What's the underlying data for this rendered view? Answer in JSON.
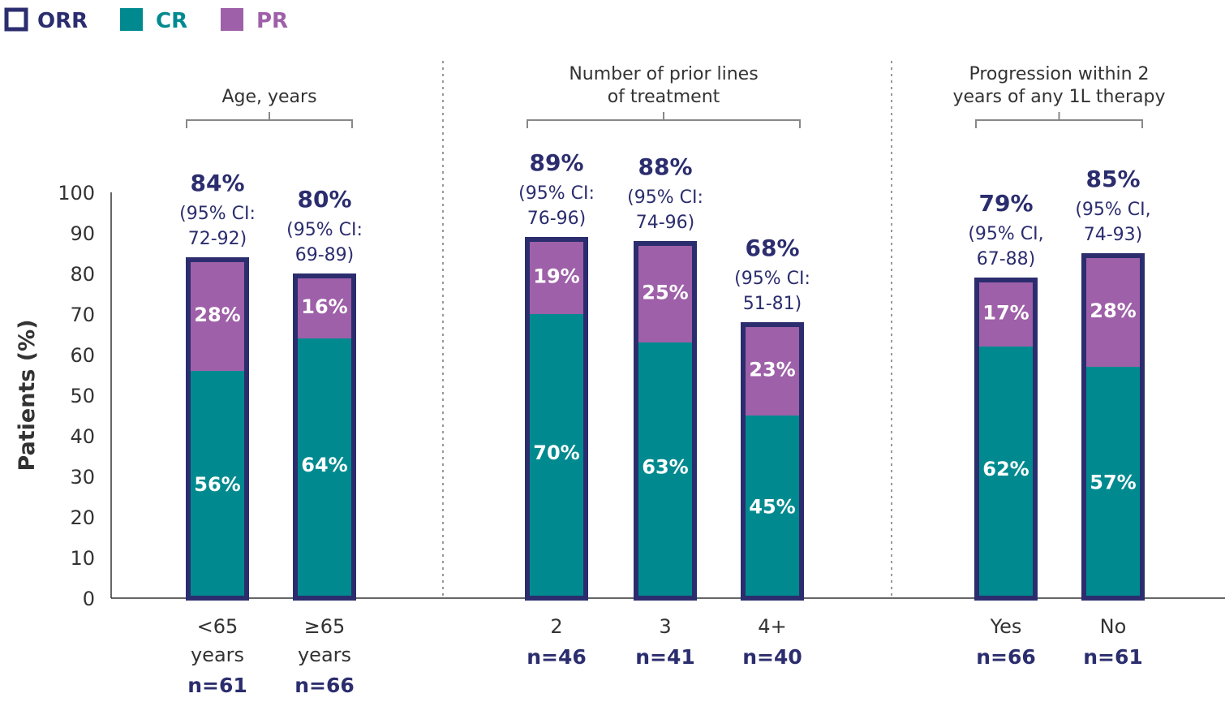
{
  "colors": {
    "orr": "#2b2d6e",
    "cr": "#008a8f",
    "pr": "#9e60a8",
    "axis": "#333333",
    "bracket": "#888888"
  },
  "legend": [
    {
      "key": "orr",
      "label": "ORR",
      "style": "outline"
    },
    {
      "key": "cr",
      "label": "CR",
      "style": "fill"
    },
    {
      "key": "pr",
      "label": "PR",
      "style": "fill"
    }
  ],
  "chart_data": {
    "type": "bar",
    "stacked": true,
    "ylabel": "Patients (%)",
    "ylim": [
      0,
      100
    ],
    "yticks": [
      0,
      10,
      20,
      30,
      40,
      50,
      60,
      70,
      80,
      90,
      100
    ],
    "groups": [
      {
        "title_lines": [
          "Age, years"
        ],
        "bars": [
          {
            "category_lines": [
              "<65",
              "years"
            ],
            "n": "n=61",
            "cr": 56,
            "pr": 28,
            "orr": 84,
            "cr_label": "56%",
            "pr_label": "28%",
            "orr_label": "84%",
            "ci_lines": [
              "(95% CI:",
              "72-92)"
            ]
          },
          {
            "category_lines": [
              "≥65",
              "years"
            ],
            "n": "n=66",
            "cr": 64,
            "pr": 16,
            "orr": 80,
            "cr_label": "64%",
            "pr_label": "16%",
            "orr_label": "80%",
            "ci_lines": [
              "(95% CI:",
              "69-89)"
            ]
          }
        ]
      },
      {
        "title_lines": [
          "Number of prior lines",
          "of treatment"
        ],
        "bars": [
          {
            "category_lines": [
              "2"
            ],
            "n": "n=46",
            "cr": 70,
            "pr": 19,
            "orr": 89,
            "cr_label": "70%",
            "pr_label": "19%",
            "orr_label": "89%",
            "ci_lines": [
              "(95% CI:",
              "76-96)"
            ]
          },
          {
            "category_lines": [
              "3"
            ],
            "n": "n=41",
            "cr": 63,
            "pr": 25,
            "orr": 88,
            "cr_label": "63%",
            "pr_label": "25%",
            "orr_label": "88%",
            "ci_lines": [
              "(95% CI:",
              "74-96)"
            ]
          },
          {
            "category_lines": [
              "4+"
            ],
            "n": "n=40",
            "cr": 45,
            "pr": 23,
            "orr": 68,
            "cr_label": "45%",
            "pr_label": "23%",
            "orr_label": "68%",
            "ci_lines": [
              "(95% CI:",
              "51-81)"
            ]
          }
        ]
      },
      {
        "title_lines": [
          "Progression within 2",
          "years of any 1L therapy"
        ],
        "bars": [
          {
            "category_lines": [
              "Yes"
            ],
            "n": "n=66",
            "cr": 62,
            "pr": 17,
            "orr": 79,
            "cr_label": "62%",
            "pr_label": "17%",
            "orr_label": "79%",
            "ci_lines": [
              "(95% CI,",
              "67-88)"
            ]
          },
          {
            "category_lines": [
              "No"
            ],
            "n": "n=61",
            "cr": 57,
            "pr": 28,
            "orr": 85,
            "cr_label": "57%",
            "pr_label": "28%",
            "orr_label": "85%",
            "ci_lines": [
              "(95% CI,",
              "74-93)"
            ]
          }
        ]
      }
    ]
  }
}
